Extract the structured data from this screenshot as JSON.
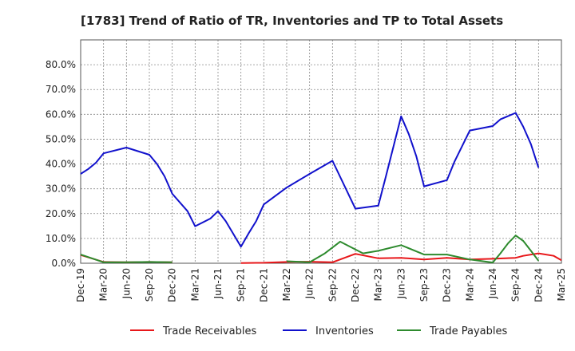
{
  "chart_data": {
    "type": "line",
    "title": "[1783]  Trend of Ratio of TR, Inventories and TP to Total Assets",
    "xlabel": "",
    "ylabel": "",
    "ylim": [
      0,
      0.9
    ],
    "y_ticks": [
      0.0,
      0.1,
      0.2,
      0.3,
      0.4,
      0.5,
      0.6,
      0.7,
      0.8
    ],
    "y_tick_labels": [
      "0.0%",
      "10.0%",
      "20.0%",
      "30.0%",
      "40.0%",
      "50.0%",
      "60.0%",
      "70.0%",
      "80.0%"
    ],
    "x_tick_labels": [
      "Dec-19",
      "Mar-20",
      "Jun-20",
      "Sep-20",
      "Dec-20",
      "Mar-21",
      "Jun-21",
      "Sep-21",
      "Dec-21",
      "Mar-22",
      "Jun-22",
      "Sep-22",
      "Dec-22",
      "Mar-23",
      "Jun-23",
      "Sep-23",
      "Dec-23",
      "Mar-24",
      "Jun-24",
      "Sep-24",
      "Dec-24",
      "Mar-25"
    ],
    "grid": true,
    "legend_position": "bottom",
    "series": [
      {
        "name": "Trade Receivables",
        "color": "#e8171a",
        "points": [
          [
            0,
            0.033
          ],
          [
            3,
            0.005
          ],
          [
            6,
            0.004
          ],
          [
            9,
            0.005
          ],
          [
            12,
            0.004
          ],
          [
            null,
            null
          ],
          [
            21,
            0.001
          ],
          [
            24,
            0.002
          ],
          [
            27,
            0.005
          ],
          [
            30,
            0.006
          ],
          [
            33,
            0.004
          ],
          [
            36,
            0.038
          ],
          [
            39,
            0.02
          ],
          [
            42,
            0.022
          ],
          [
            45,
            0.015
          ],
          [
            48,
            0.022
          ],
          [
            51,
            0.015
          ],
          [
            54,
            0.018
          ],
          [
            57,
            0.022
          ],
          [
            58,
            0.03
          ],
          [
            60,
            0.04
          ],
          [
            62,
            0.03
          ],
          [
            63,
            0.012
          ]
        ]
      },
      {
        "name": "Inventories",
        "color": "#1111cc",
        "points": [
          [
            0,
            0.36
          ],
          [
            1,
            0.38
          ],
          [
            2,
            0.405
          ],
          [
            3,
            0.443
          ],
          [
            6,
            0.466
          ],
          [
            9,
            0.437
          ],
          [
            10,
            0.4
          ],
          [
            11,
            0.35
          ],
          [
            12,
            0.28
          ],
          [
            14,
            0.21
          ],
          [
            15,
            0.149
          ],
          [
            17,
            0.18
          ],
          [
            18,
            0.21
          ],
          [
            19,
            0.17
          ],
          [
            21,
            0.067
          ],
          [
            22,
            0.12
          ],
          [
            23,
            0.17
          ],
          [
            24,
            0.237
          ],
          [
            27,
            0.305
          ],
          [
            30,
            0.36
          ],
          [
            33,
            0.413
          ],
          [
            36,
            0.22
          ],
          [
            39,
            0.232
          ],
          [
            40,
            0.35
          ],
          [
            42,
            0.592
          ],
          [
            43,
            0.52
          ],
          [
            44,
            0.43
          ],
          [
            45,
            0.31
          ],
          [
            48,
            0.335
          ],
          [
            49,
            0.41
          ],
          [
            51,
            0.535
          ],
          [
            54,
            0.553
          ],
          [
            55,
            0.58
          ],
          [
            57,
            0.606
          ],
          [
            58,
            0.55
          ],
          [
            59,
            0.48
          ],
          [
            60,
            0.385
          ]
        ]
      },
      {
        "name": "Trade Payables",
        "color": "#2e8b2e",
        "points": [
          [
            0,
            0.035
          ],
          [
            3,
            0.004
          ],
          [
            6,
            0.004
          ],
          [
            9,
            0.005
          ],
          [
            12,
            0.004
          ],
          [
            null,
            null
          ],
          [
            27,
            0.008
          ],
          [
            30,
            0.004
          ],
          [
            32,
            0.04
          ],
          [
            34,
            0.087
          ],
          [
            37,
            0.04
          ],
          [
            39,
            0.05
          ],
          [
            42,
            0.073
          ],
          [
            45,
            0.035
          ],
          [
            48,
            0.035
          ],
          [
            51,
            0.015
          ],
          [
            54,
            0.003
          ],
          [
            55,
            0.04
          ],
          [
            56,
            0.08
          ],
          [
            57,
            0.112
          ],
          [
            58,
            0.09
          ],
          [
            59,
            0.05
          ],
          [
            60,
            0.01
          ]
        ]
      }
    ]
  }
}
